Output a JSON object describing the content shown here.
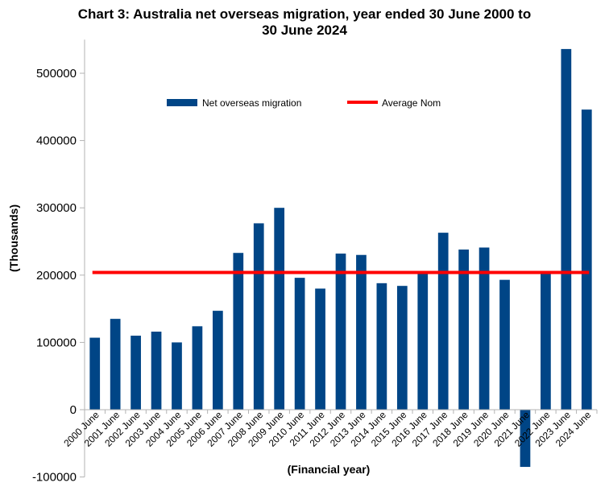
{
  "chart_data": {
    "type": "bar",
    "title_line1": "Chart 3: Australia net overseas migration, year ended 30 June 2000 to",
    "title_line2": "30 June 2024",
    "xlabel": "(Financial year)",
    "ylabel": "(Thousands)",
    "ylim": [
      -100000,
      550000
    ],
    "yticks": [
      -100000,
      0,
      100000,
      200000,
      300000,
      400000,
      500000
    ],
    "ytick_labels": [
      "-100000",
      "0",
      "100000",
      "200000",
      "300000",
      "400000",
      "500000"
    ],
    "categories": [
      "2000 June",
      "2001 June",
      "2002 June",
      "2003 June",
      "2004 June",
      "2005 June",
      "2006 June",
      "2007 June",
      "2008 June",
      "2009 June",
      "2010 June",
      "2011 June",
      "2012 June",
      "2013 June",
      "2014 June",
      "2015 June",
      "2016 June",
      "2017 June",
      "2018 June",
      "2019 June",
      "2020 June",
      "2021 June",
      "2022 June",
      "2023 June",
      "2024 June"
    ],
    "series": [
      {
        "name": "Net overseas migration",
        "type": "bar",
        "color": "#004586",
        "values": [
          107000,
          135000,
          110000,
          116000,
          100000,
          124000,
          147000,
          233000,
          277000,
          300000,
          196000,
          180000,
          232000,
          230000,
          188000,
          184000,
          206000,
          263000,
          238000,
          241000,
          193000,
          -85000,
          202000,
          536000,
          446000
        ]
      },
      {
        "name": "Average Nom",
        "type": "line",
        "color": "#ff0000",
        "values": [
          204000,
          204000,
          204000,
          204000,
          204000,
          204000,
          204000,
          204000,
          204000,
          204000,
          204000,
          204000,
          204000,
          204000,
          204000,
          204000,
          204000,
          204000,
          204000,
          204000,
          204000,
          204000,
          204000,
          204000,
          204000
        ]
      }
    ],
    "grid": false,
    "legend_position": "top"
  }
}
